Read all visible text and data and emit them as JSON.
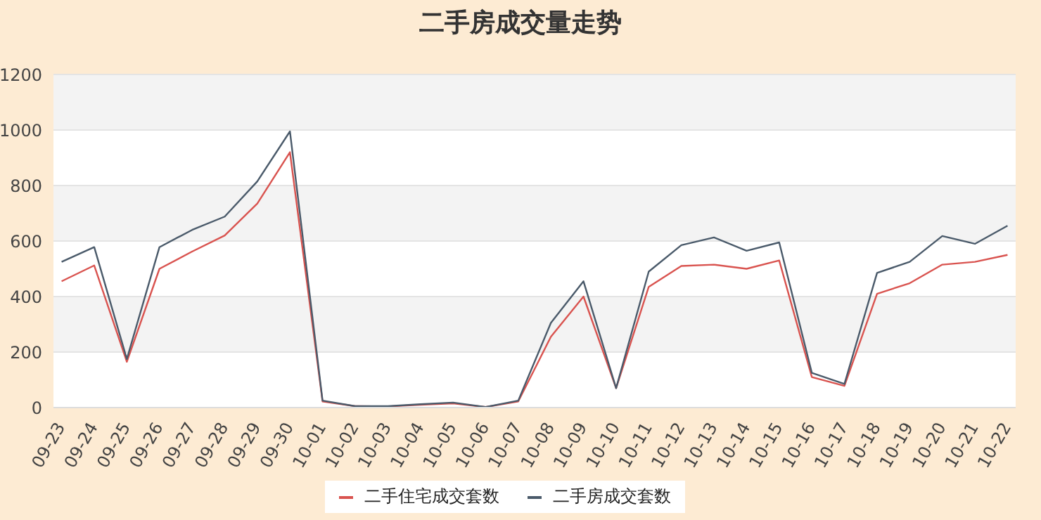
{
  "chart_data": {
    "type": "line",
    "title": "二手房成交量走势",
    "categories": [
      "09-23",
      "09-24",
      "09-25",
      "09-26",
      "09-27",
      "09-28",
      "09-29",
      "09-30",
      "10-01",
      "10-02",
      "10-03",
      "10-04",
      "10-05",
      "10-06",
      "10-07",
      "10-08",
      "10-09",
      "10-10",
      "10-11",
      "10-12",
      "10-13",
      "10-14",
      "10-15",
      "10-16",
      "10-17",
      "10-18",
      "10-19",
      "10-20",
      "10-21",
      "10-22"
    ],
    "series": [
      {
        "name": "二手住宅成交套数",
        "color": "#d9534f",
        "values": [
          455,
          512,
          165,
          500,
          562,
          620,
          735,
          920,
          22,
          5,
          4,
          10,
          15,
          2,
          22,
          255,
          400,
          70,
          435,
          510,
          515,
          500,
          530,
          110,
          78,
          410,
          448,
          515,
          525,
          550
        ]
      },
      {
        "name": "二手房成交套数",
        "color": "#4a5a6a",
        "values": [
          525,
          578,
          175,
          578,
          640,
          688,
          815,
          995,
          25,
          5,
          5,
          12,
          18,
          2,
          25,
          305,
          455,
          70,
          490,
          585,
          613,
          565,
          595,
          125,
          85,
          485,
          525,
          618,
          590,
          655
        ]
      }
    ],
    "ylim": [
      0,
      1200
    ],
    "yticks": [
      0,
      200,
      400,
      600,
      800,
      1000,
      1200
    ],
    "grid": "y",
    "legend": "bottom",
    "marker": "none",
    "line_style": "solid"
  }
}
